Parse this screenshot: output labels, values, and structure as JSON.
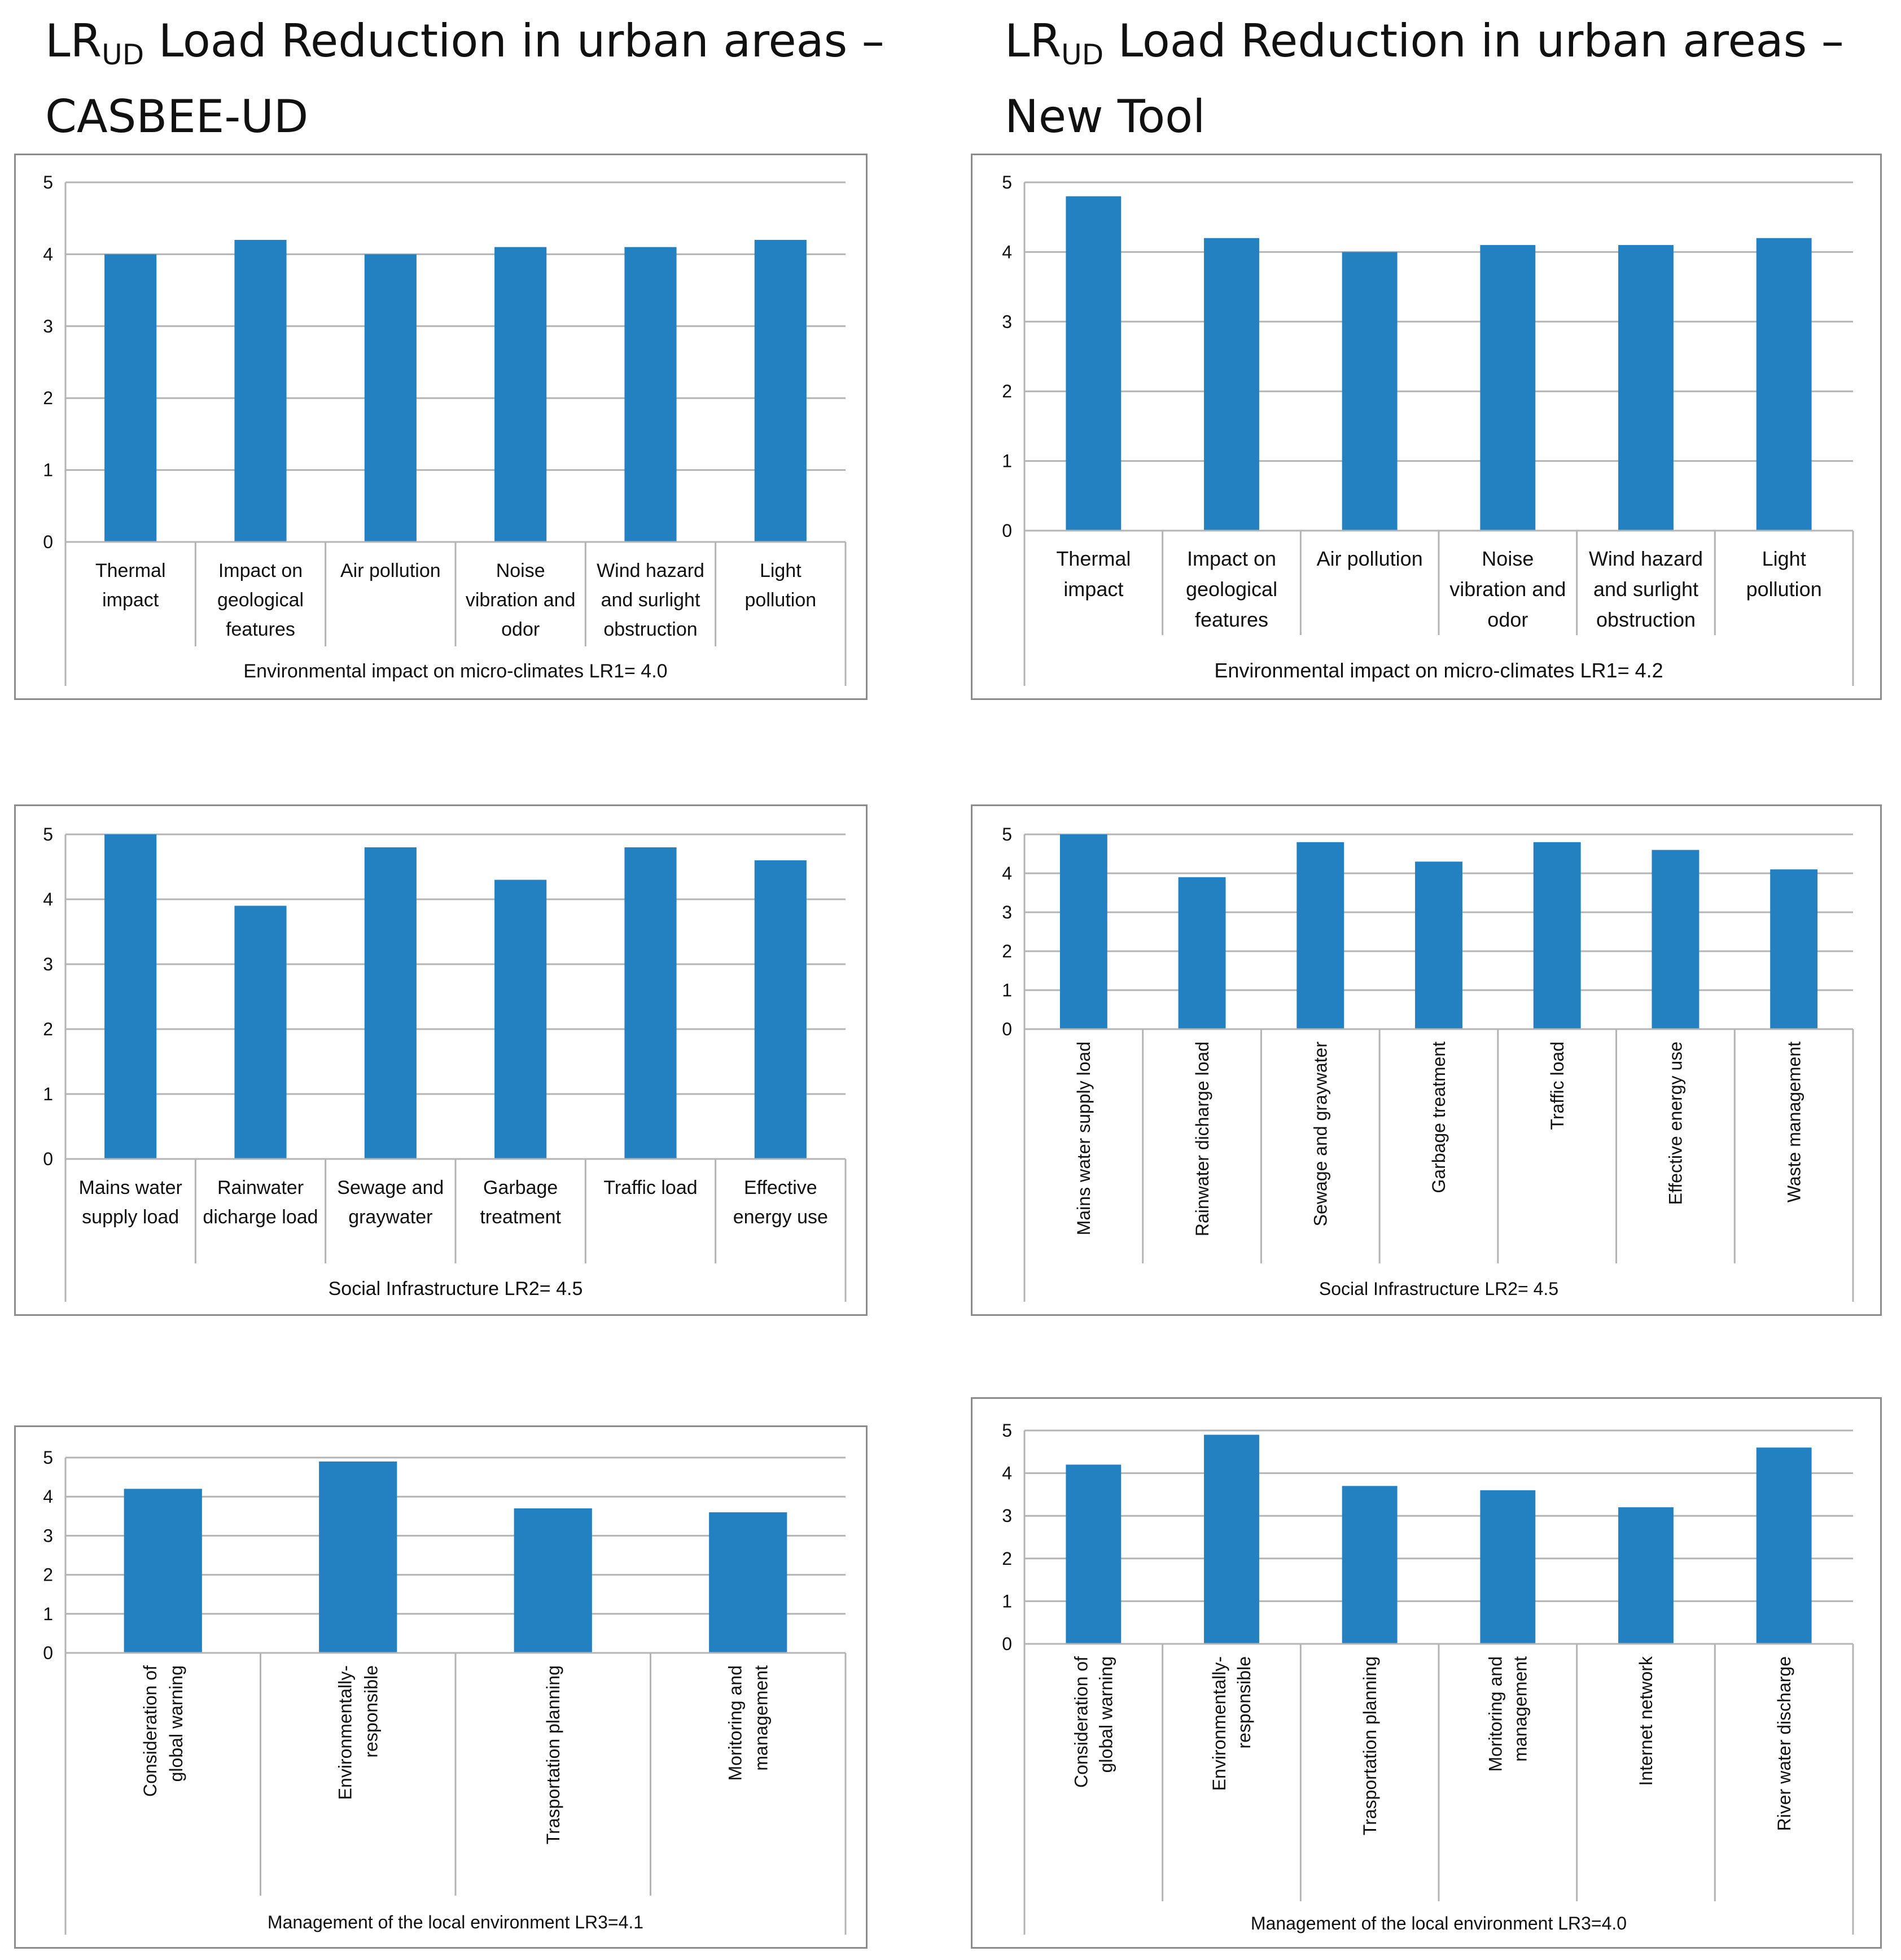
{
  "headings": [
    {
      "prefix": "LR",
      "sub": "UD",
      "rest": " Load Reduction in urban areas –",
      "line2": "CASBEE-UD"
    },
    {
      "prefix": "LR",
      "sub": "UD",
      "rest": " Load Reduction in urban areas –",
      "line2": "New Tool"
    }
  ],
  "chart_data": [
    {
      "type": "bar",
      "title": "Environmental impact on micro-climates LR1= 4.0",
      "ylim": [
        0,
        5
      ],
      "yticks": [
        "0",
        "1",
        "2",
        "3",
        "4",
        "5"
      ],
      "rotate": false,
      "categories": [
        "Thermal impact",
        "Impact on geological features",
        "Air pollution",
        "Noise vibration and odor",
        "Wind hazard and surlight obstruction",
        "Light pollution"
      ],
      "values": [
        4.0,
        4.2,
        4.0,
        4.1,
        4.1,
        4.2
      ]
    },
    {
      "type": "bar",
      "title": "Environmental impact on micro-climates LR1= 4.2",
      "ylim": [
        0,
        5
      ],
      "yticks": [
        "0",
        "1",
        "2",
        "3",
        "4",
        "5"
      ],
      "rotate": false,
      "categories": [
        "Thermal impact",
        "Impact on geological features",
        "Air pollution",
        "Noise vibration and odor",
        "Wind hazard and surlight obstruction",
        "Light pollution"
      ],
      "values": [
        4.8,
        4.2,
        4.0,
        4.1,
        4.1,
        4.2
      ]
    },
    {
      "type": "bar",
      "title": "Social Infrastructure LR2= 4.5",
      "ylim": [
        0,
        5
      ],
      "yticks": [
        "0",
        "1",
        "2",
        "3",
        "4",
        "5"
      ],
      "rotate": false,
      "categories": [
        "Mains water supply load",
        "Rainwater dicharge load",
        "Sewage and graywater",
        "Garbage treatment",
        "Traffic load",
        "Effective energy use"
      ],
      "values": [
        5.0,
        3.9,
        4.8,
        4.3,
        4.8,
        4.6
      ]
    },
    {
      "type": "bar",
      "title": "Social Infrastructure LR2= 4.5",
      "ylim": [
        0,
        5
      ],
      "yticks": [
        "0",
        "1",
        "2",
        "3",
        "4",
        "5"
      ],
      "rotate": true,
      "categories": [
        "Mains water supply load",
        "Rainwater dicharge load",
        "Sewage and graywater",
        "Garbage treatment",
        "Traffic load",
        "Effective energy use",
        "Waste management"
      ],
      "values": [
        5.0,
        3.9,
        4.8,
        4.3,
        4.8,
        4.6,
        4.1
      ]
    },
    {
      "type": "bar",
      "title": "Management of the local environment LR3=4.1",
      "ylim": [
        0,
        5
      ],
      "yticks": [
        "0",
        "1",
        "2",
        "3",
        "4",
        "5"
      ],
      "rotate": true,
      "categories": [
        "Consideration of global warning",
        "Environmentally-responsible",
        "Trasportation planning",
        "Moritoring and management"
      ],
      "values": [
        4.2,
        4.9,
        3.7,
        3.6
      ]
    },
    {
      "type": "bar",
      "title": "Management of the local environment LR3=4.0",
      "ylim": [
        0,
        5
      ],
      "yticks": [
        "0",
        "1",
        "2",
        "3",
        "4",
        "5"
      ],
      "rotate": true,
      "categories": [
        "Consideration of global warning",
        "Environmentally-responsible",
        "Trasportation planning",
        "Moritoring and management",
        "Internet network",
        "River water discharge"
      ],
      "values": [
        4.2,
        4.9,
        3.7,
        3.6,
        3.2,
        4.6
      ]
    }
  ],
  "colors": {
    "bar": "#2381C1",
    "grid": "#b4b4b4",
    "frame": "#8c8c8c"
  }
}
